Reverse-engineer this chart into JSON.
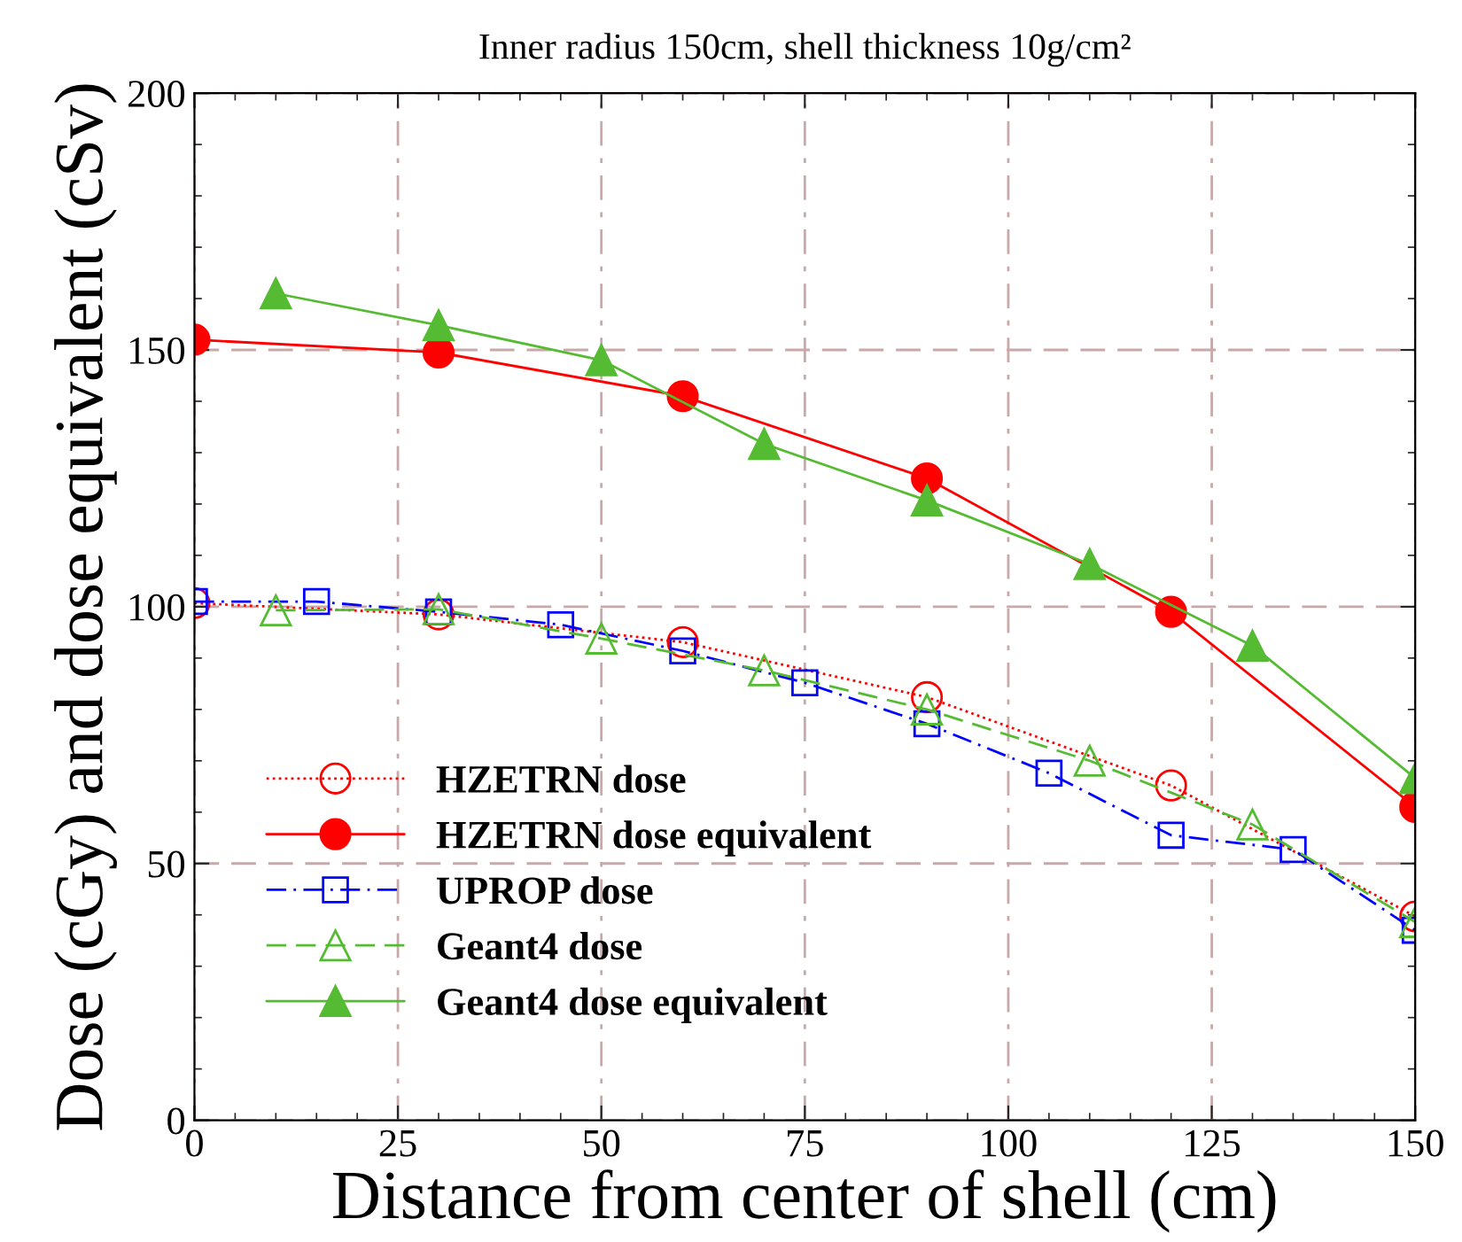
{
  "chart_data": {
    "type": "line",
    "title": "Inner radius 150cm, shell thickness 10g/cm²",
    "xlabel": "Distance from center of shell (cm)",
    "ylabel": "Dose (cGy) and dose equivalent (cSv)",
    "xlim": [
      0,
      150
    ],
    "xticks": [
      0,
      25,
      50,
      75,
      100,
      125,
      150
    ],
    "ylim": [
      0,
      200
    ],
    "yticks": [
      0,
      50,
      100,
      150,
      200
    ],
    "grid": true,
    "legend": "bottom left",
    "series": [
      {
        "name": "HZETRN dose",
        "color": "#ff0000",
        "marker": "circle",
        "line_style": "dotted",
        "x": [
          0,
          30,
          60,
          90,
          120,
          150
        ],
        "values": [
          100.7,
          98.5,
          93.1,
          82.4,
          65.2,
          39.7
        ]
      },
      {
        "name": "HZETRN dose equivalent",
        "color": "#ff0000",
        "marker": "circle",
        "line_style": "solid",
        "x": [
          0,
          30,
          60,
          90,
          120,
          150
        ],
        "values": [
          152,
          149.5,
          141,
          125,
          99,
          61
        ]
      },
      {
        "name": "UPROP dose",
        "color": "#0000ff",
        "marker": "square",
        "line_style": "dashdot",
        "x": [
          0,
          15,
          30,
          45,
          60,
          75,
          90,
          105,
          120,
          135,
          150
        ],
        "values": [
          101,
          101,
          99,
          96.5,
          91.4,
          85.2,
          77.2,
          67.6,
          55.5,
          52.7,
          37
        ]
      },
      {
        "name": "Geant4 dose",
        "color": "#55bb33",
        "marker": "triangle",
        "line_style": "dashed",
        "x": [
          10,
          30,
          50,
          70,
          90,
          110,
          130,
          150
        ],
        "values": [
          99.3,
          99.5,
          93.8,
          87.6,
          80,
          70,
          57.6,
          38.6
        ]
      },
      {
        "name": "Geant4 dose equivalent",
        "color": "#55bb33",
        "marker": "triangle",
        "line_style": "solid",
        "x": [
          10,
          30,
          50,
          70,
          90,
          110,
          130,
          150
        ],
        "values": [
          161,
          154.8,
          148,
          131.7,
          120.7,
          108.3,
          92.4,
          66.6
        ]
      }
    ]
  }
}
